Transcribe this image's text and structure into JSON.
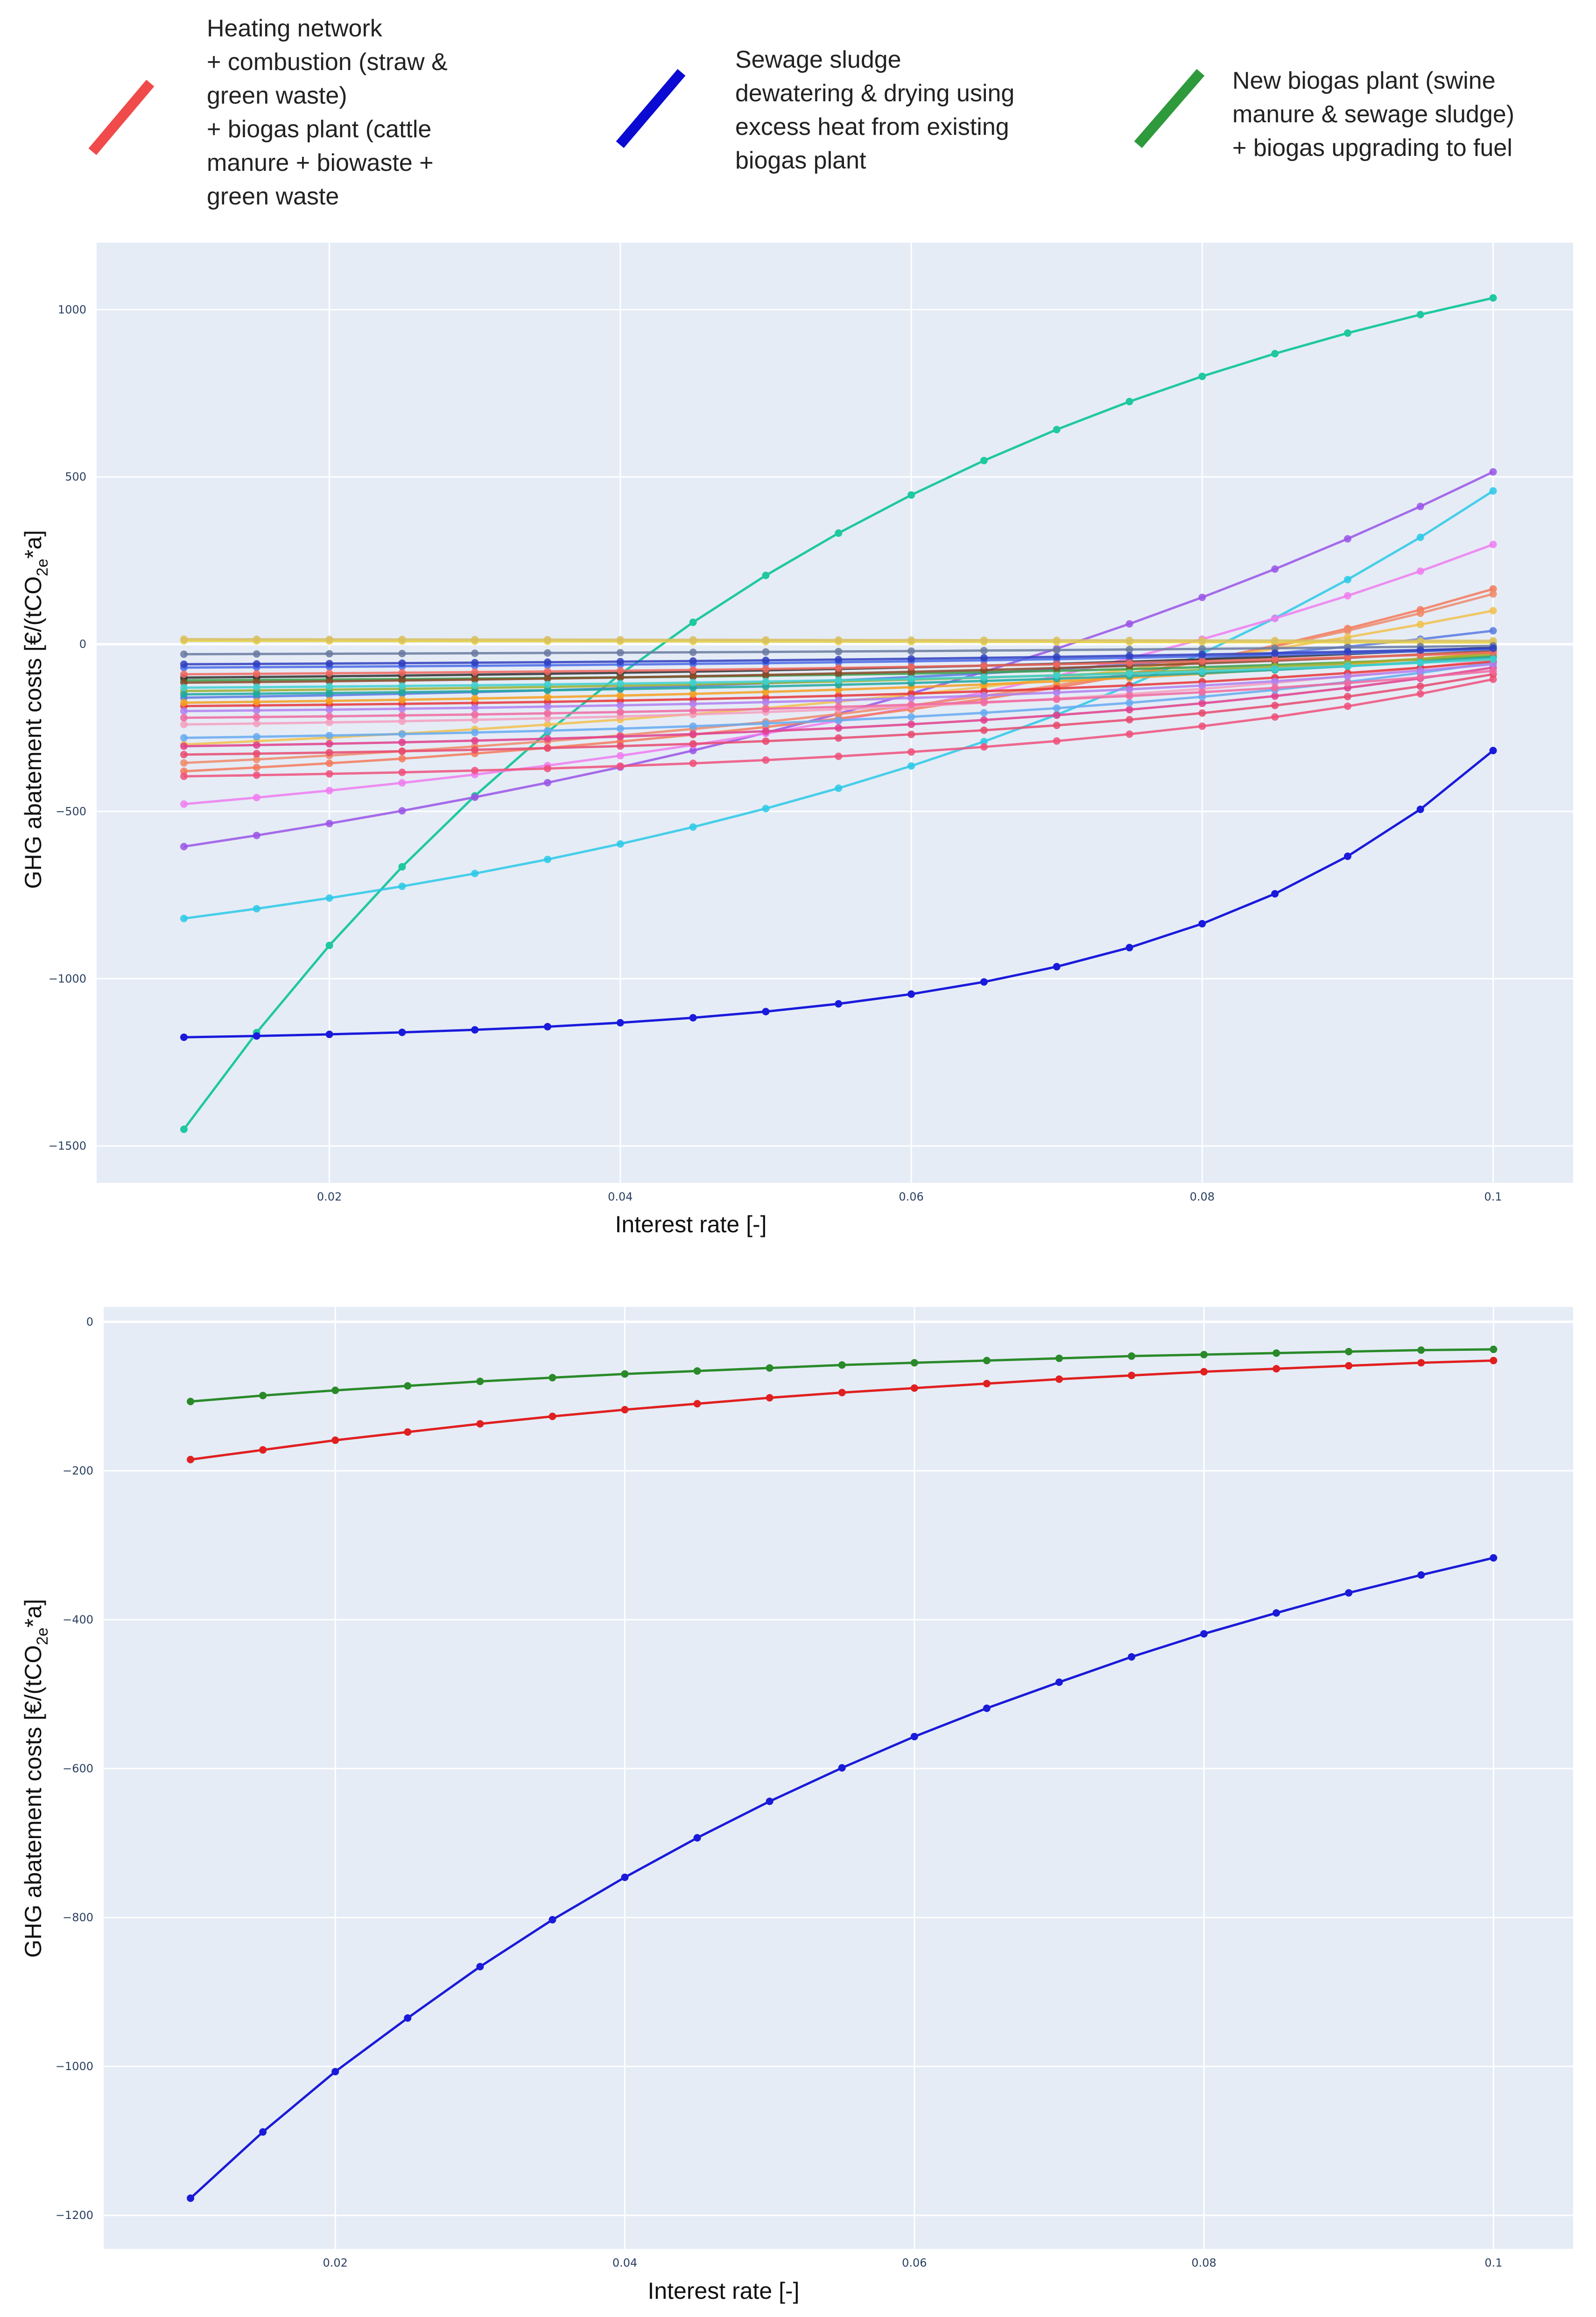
{
  "legend": [
    {
      "color": "#f04a4a",
      "lines": [
        "Heating network",
        "+ combustion (straw &",
        "green waste)",
        "+ biogas plant (cattle",
        "manure + biowaste +",
        "green waste"
      ]
    },
    {
      "color": "#0a0ad2",
      "lines": [
        "Sewage sludge",
        "dewatering & drying using",
        "excess heat from existing",
        "biogas plant"
      ]
    },
    {
      "color": "#2e9a3b",
      "lines": [
        "New biogas plant (swine",
        "manure & sewage sludge)",
        "+ biogas upgrading to fuel"
      ]
    }
  ],
  "chart_data": [
    {
      "type": "line",
      "title": "",
      "xlabel": "Interest rate [-]",
      "ylabel_main": "GHG abatement costs [€/(tCO",
      "ylabel_sub": "2e",
      "ylabel_tail": "*a]",
      "xlim": [
        0.004,
        0.1055
      ],
      "ylim": [
        -1610,
        1200
      ],
      "x_ticks": [
        0.02,
        0.04,
        0.06,
        0.08,
        0.1
      ],
      "x_tick_labels": [
        "0.02",
        "0.04",
        "0.06",
        "0.08",
        "0.1"
      ],
      "y_ticks": [
        -1500,
        -1000,
        -500,
        0,
        500,
        1000
      ],
      "y_tick_labels": [
        "−1500",
        "−1000",
        "−500",
        "0",
        "500",
        "1000"
      ],
      "x": [
        0.01,
        0.015,
        0.02,
        0.025,
        0.03,
        0.035,
        0.04,
        0.045,
        0.05,
        0.055,
        0.06,
        0.065,
        0.07,
        0.075,
        0.08,
        0.085,
        0.09,
        0.095,
        0.1
      ],
      "series": [
        {
          "name": "teal-steep",
          "color": "#1fc8a0",
          "start": -1450,
          "end": 1035,
          "curve": 0.62
        },
        {
          "name": "blue-sewage",
          "color": "#1a1adc",
          "start": -1175,
          "end": -318,
          "curve": -1.35
        },
        {
          "name": "cyan",
          "color": "#2cc9e6",
          "start": -820,
          "end": 458,
          "curve": -0.55
        },
        {
          "name": "purple",
          "color": "#9a55e6",
          "start": -605,
          "end": 515,
          "curve": -0.4
        },
        {
          "name": "pink",
          "color": "#f07cf0",
          "start": -478,
          "end": 298,
          "curve": -0.5
        },
        {
          "name": "salmon-1",
          "color": "#f47a5c",
          "start": -380,
          "end": 165,
          "curve": -0.6
        },
        {
          "name": "salmon-2",
          "color": "#f08a6a",
          "start": -355,
          "end": 150,
          "curve": -0.6
        },
        {
          "name": "gold-1",
          "color": "#f2c14e",
          "start": -300,
          "end": 100,
          "curve": -0.5
        },
        {
          "name": "pink-red-1",
          "color": "#f0507a",
          "start": -395,
          "end": -105,
          "curve": -0.9
        },
        {
          "name": "pink-red-2",
          "color": "#e84a6e",
          "start": -330,
          "end": -90,
          "curve": -0.9
        },
        {
          "name": "magenta",
          "color": "#e0408c",
          "start": -305,
          "end": -70,
          "curve": -0.8
        },
        {
          "name": "steel-blue",
          "color": "#5a7ae0",
          "start": -160,
          "end": 40,
          "curve": -0.7
        },
        {
          "name": "light-pink",
          "color": "#f4a0c0",
          "start": -240,
          "end": -45,
          "curve": -0.8
        },
        {
          "name": "sky",
          "color": "#66aaf0",
          "start": -280,
          "end": -55,
          "curve": -0.8
        },
        {
          "name": "green",
          "color": "#3aa04a",
          "start": -108,
          "end": -36,
          "curve": -0.8
        },
        {
          "name": "red",
          "color": "#e8363a",
          "start": -185,
          "end": -52,
          "curve": -0.8
        },
        {
          "name": "dark",
          "color": "#303030",
          "start": -100,
          "end": -10,
          "curve": -0.6
        },
        {
          "name": "brown",
          "color": "#8a4a2a",
          "start": -115,
          "end": -20,
          "curve": -0.6
        },
        {
          "name": "orange",
          "color": "#f5a020",
          "start": -175,
          "end": -25,
          "curve": -0.7
        },
        {
          "name": "olive",
          "color": "#9ab030",
          "start": -140,
          "end": -30,
          "curve": -0.7
        },
        {
          "name": "yellow",
          "color": "#e8d040",
          "start": 10,
          "end": 5,
          "curve": 0
        },
        {
          "name": "khaki",
          "color": "#d8c060",
          "start": 15,
          "end": 10,
          "curve": 0
        },
        {
          "name": "blue-2",
          "color": "#4a6ae8",
          "start": -70,
          "end": -15,
          "curve": -0.6
        },
        {
          "name": "grey-blue",
          "color": "#6a7aa0",
          "start": -30,
          "end": -5,
          "curve": -0.5
        },
        {
          "name": "teal-2",
          "color": "#20a8a0",
          "start": -150,
          "end": -40,
          "curve": -0.7
        },
        {
          "name": "lilac",
          "color": "#b080f0",
          "start": -200,
          "end": -60,
          "curve": -0.8
        },
        {
          "name": "coral",
          "color": "#f06860",
          "start": -90,
          "end": -25,
          "curve": -0.6
        },
        {
          "name": "aqua",
          "color": "#40d0d0",
          "start": -130,
          "end": -45,
          "curve": -0.7
        },
        {
          "name": "rose",
          "color": "#f06aa0",
          "start": -220,
          "end": -80,
          "curve": -0.8
        },
        {
          "name": "navy",
          "color": "#3040c0",
          "start": -60,
          "end": -12,
          "curve": -0.6
        }
      ]
    },
    {
      "type": "line",
      "title": "",
      "xlabel": "Interest rate [-]",
      "ylabel_main": "GHG abatement costs [€/(tCO",
      "ylabel_sub": "2e",
      "ylabel_tail": "*a]",
      "xlim": [
        0.004,
        0.1055
      ],
      "ylim": [
        -1245,
        20
      ],
      "x_ticks": [
        0.02,
        0.04,
        0.06,
        0.08,
        0.1
      ],
      "x_tick_labels": [
        "0.02",
        "0.04",
        "0.06",
        "0.08",
        "0.1"
      ],
      "y_ticks": [
        -1200,
        -1000,
        -800,
        -600,
        -400,
        -200,
        0
      ],
      "y_tick_labels": [
        "−1200",
        "−1000",
        "−800",
        "−600",
        "−400",
        "−200",
        "0"
      ],
      "x": [
        0.01,
        0.015,
        0.02,
        0.025,
        0.03,
        0.035,
        0.04,
        0.045,
        0.05,
        0.055,
        0.06,
        0.065,
        0.07,
        0.075,
        0.08,
        0.085,
        0.09,
        0.095,
        0.1
      ],
      "series": [
        {
          "name": "New biogas plant (swine manure & sewage sludge) + biogas upgrading to fuel",
          "color": "#2a8a2a",
          "values": [
            -107,
            -99,
            -92,
            -86,
            -80,
            -75,
            -70,
            -66,
            -62,
            -58,
            -55,
            -52,
            -49,
            -46,
            -44,
            -42,
            -40,
            -38,
            -37
          ]
        },
        {
          "name": "Heating network + combustion + biogas plant",
          "color": "#e02020",
          "values": [
            -185,
            -172,
            -159,
            -148,
            -137,
            -127,
            -118,
            -110,
            -102,
            -95,
            -89,
            -83,
            -77,
            -72,
            -67,
            -63,
            -59,
            -55,
            -52
          ]
        },
        {
          "name": "Sewage sludge dewatering & drying using excess heat",
          "color": "#1a1ad8",
          "values": [
            -1177,
            -1088,
            -1007,
            -935,
            -866,
            -803,
            -746,
            -693,
            -644,
            -599,
            -557,
            -519,
            -484,
            -450,
            -419,
            -391,
            -364,
            -340,
            -317
          ]
        }
      ]
    }
  ]
}
